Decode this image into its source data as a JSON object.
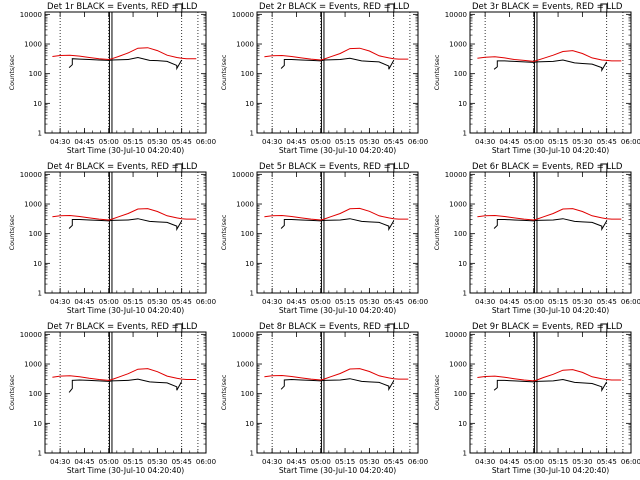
{
  "colors": {
    "events": "#000000",
    "lld": "#e00000"
  },
  "chart_data": [
    {
      "type": "line",
      "title": "Det 1r BLACK = Events, RED = LLD",
      "ylabel": "Counts/sec",
      "xlabel": "Start Time (30-Jul-10 04:20:40)",
      "x_ticks": [
        "04:30",
        "04:45",
        "05:00",
        "05:15",
        "05:30",
        "05:45",
        "06:00"
      ],
      "y_ticks": [
        "1",
        "10",
        "100",
        "1000",
        "10000"
      ],
      "xlim": [
        4.3444,
        6.0
      ],
      "ylim": [
        1,
        12000
      ],
      "dotted_lines_x": [
        4.5,
        5.0,
        5.75,
        5.917
      ],
      "solid_lines_x": [
        5.007,
        5.033
      ],
      "series": [
        {
          "name": "Events",
          "color": "#000000",
          "x": [
            4.592,
            4.625,
            4.625,
            4.7,
            4.8,
            4.9,
            5.0,
            5.033,
            5.2,
            5.3,
            5.42,
            5.5,
            5.6,
            5.7,
            5.7,
            5.75,
            5.75,
            5.8
          ],
          "y": [
            160,
            200,
            320,
            310,
            300,
            290,
            280,
            290,
            300,
            350,
            280,
            275,
            260,
            190,
            150,
            290,
            null,
            null
          ]
        },
        {
          "name": "LLD",
          "color": "#e00000",
          "x": [
            4.42,
            4.5,
            4.6,
            4.7,
            4.8,
            4.9,
            5.0,
            5.033,
            5.1,
            5.2,
            5.3,
            5.4,
            5.5,
            5.6,
            5.7,
            5.75,
            5.8,
            5.9
          ],
          "y": [
            380,
            410,
            420,
            390,
            350,
            320,
            300,
            320,
            380,
            500,
            720,
            750,
            600,
            420,
            350,
            330,
            320,
            320
          ]
        }
      ]
    },
    {
      "type": "line",
      "title": "Det 2r BLACK = Events, RED = LLD",
      "ylabel": "Counts/sec",
      "xlabel": "Start Time (30-Jul-10 04:20:40)",
      "x_ticks": [
        "04:30",
        "04:45",
        "05:00",
        "05:15",
        "05:30",
        "05:45",
        "06:00"
      ],
      "y_ticks": [
        "1",
        "10",
        "100",
        "1000",
        "10000"
      ],
      "xlim": [
        4.3444,
        6.0
      ],
      "ylim": [
        1,
        12000
      ],
      "dotted_lines_x": [
        4.5,
        5.0,
        5.75,
        5.917
      ],
      "solid_lines_x": [
        5.007,
        5.033
      ],
      "series": [
        {
          "name": "Events",
          "color": "#000000",
          "x": [
            4.592,
            4.625,
            4.625,
            4.7,
            4.8,
            4.9,
            5.0,
            5.033,
            5.2,
            5.3,
            5.42,
            5.5,
            5.6,
            5.7,
            5.7,
            5.75
          ],
          "y": [
            150,
            190,
            300,
            300,
            290,
            280,
            270,
            290,
            300,
            330,
            270,
            260,
            250,
            180,
            140,
            280
          ]
        },
        {
          "name": "LLD",
          "color": "#e00000",
          "x": [
            4.42,
            4.5,
            4.6,
            4.7,
            4.8,
            4.9,
            5.0,
            5.033,
            5.1,
            5.2,
            5.3,
            5.4,
            5.5,
            5.6,
            5.7,
            5.75,
            5.8,
            5.9
          ],
          "y": [
            370,
            400,
            410,
            380,
            340,
            310,
            290,
            310,
            370,
            480,
            700,
            720,
            580,
            400,
            340,
            320,
            310,
            310
          ]
        }
      ]
    },
    {
      "type": "line",
      "title": "Det 3r BLACK = Events, RED = LLD",
      "ylabel": "Counts/sec",
      "xlabel": "Start Time (30-Jul-10 04:20:40)",
      "x_ticks": [
        "04:30",
        "04:45",
        "05:00",
        "05:15",
        "05:30",
        "05:45",
        "06:00"
      ],
      "y_ticks": [
        "1",
        "10",
        "100",
        "1000",
        "10000"
      ],
      "xlim": [
        4.3444,
        6.0
      ],
      "ylim": [
        1,
        12000
      ],
      "dotted_lines_x": [
        4.5,
        5.0,
        5.75,
        5.917
      ],
      "solid_lines_x": [
        5.007,
        5.033
      ],
      "series": [
        {
          "name": "Events",
          "color": "#000000",
          "x": [
            4.592,
            4.625,
            4.625,
            4.7,
            4.8,
            4.9,
            5.0,
            5.033,
            5.2,
            5.3,
            5.42,
            5.5,
            5.6,
            5.7,
            5.7,
            5.75
          ],
          "y": [
            140,
            170,
            270,
            270,
            260,
            250,
            240,
            250,
            260,
            290,
            230,
            220,
            210,
            160,
            130,
            250
          ]
        },
        {
          "name": "LLD",
          "color": "#e00000",
          "x": [
            4.42,
            4.5,
            4.6,
            4.7,
            4.8,
            4.9,
            5.0,
            5.033,
            5.1,
            5.2,
            5.3,
            5.4,
            5.5,
            5.6,
            5.7,
            5.75,
            5.8,
            5.9
          ],
          "y": [
            330,
            360,
            370,
            340,
            300,
            280,
            260,
            280,
            330,
            420,
            560,
            600,
            480,
            340,
            290,
            280,
            270,
            270
          ]
        }
      ]
    },
    {
      "type": "line",
      "title": "Det 4r BLACK = Events, RED = LLD",
      "ylabel": "Counts/sec",
      "xlabel": "Start Time (30-Jul-10 04:20:40)",
      "x_ticks": [
        "04:30",
        "04:45",
        "05:00",
        "05:15",
        "05:30",
        "05:45",
        "06:00"
      ],
      "y_ticks": [
        "1",
        "10",
        "100",
        "1000",
        "10000"
      ],
      "xlim": [
        4.3444,
        6.0
      ],
      "ylim": [
        1,
        12000
      ],
      "dotted_lines_x": [
        4.5,
        5.0,
        5.75,
        5.917
      ],
      "solid_lines_x": [
        5.007,
        5.033
      ],
      "series": [
        {
          "name": "Events",
          "color": "#000000",
          "x": [
            4.592,
            4.625,
            4.625,
            4.7,
            4.8,
            4.9,
            5.0,
            5.033,
            5.2,
            5.3,
            5.42,
            5.5,
            5.6,
            5.7,
            5.7,
            5.75
          ],
          "y": [
            150,
            190,
            300,
            300,
            290,
            280,
            270,
            280,
            290,
            320,
            260,
            250,
            240,
            180,
            140,
            270
          ]
        },
        {
          "name": "LLD",
          "color": "#e00000",
          "x": [
            4.42,
            4.5,
            4.6,
            4.7,
            4.8,
            4.9,
            5.0,
            5.033,
            5.1,
            5.2,
            5.3,
            5.4,
            5.5,
            5.6,
            5.7,
            5.75,
            5.8,
            5.9
          ],
          "y": [
            370,
            400,
            410,
            380,
            340,
            310,
            290,
            310,
            370,
            480,
            680,
            700,
            560,
            400,
            340,
            320,
            310,
            310
          ]
        }
      ]
    },
    {
      "type": "line",
      "title": "Det 5r BLACK = Events, RED = LLD",
      "ylabel": "Counts/sec",
      "xlabel": "Start Time (30-Jul-10 04:20:40)",
      "x_ticks": [
        "04:30",
        "04:45",
        "05:00",
        "05:15",
        "05:30",
        "05:45",
        "06:00"
      ],
      "y_ticks": [
        "1",
        "10",
        "100",
        "1000",
        "10000"
      ],
      "xlim": [
        4.3444,
        6.0
      ],
      "ylim": [
        1,
        12000
      ],
      "dotted_lines_x": [
        4.5,
        5.0,
        5.75,
        5.917
      ],
      "solid_lines_x": [
        5.007,
        5.033
      ],
      "series": [
        {
          "name": "Events",
          "color": "#000000",
          "x": [
            4.592,
            4.625,
            4.625,
            4.7,
            4.8,
            4.9,
            5.0,
            5.033,
            5.2,
            5.3,
            5.42,
            5.5,
            5.6,
            5.7,
            5.7,
            5.75
          ],
          "y": [
            150,
            190,
            300,
            300,
            290,
            280,
            270,
            280,
            290,
            320,
            260,
            250,
            240,
            180,
            140,
            270
          ]
        },
        {
          "name": "LLD",
          "color": "#e00000",
          "x": [
            4.42,
            4.5,
            4.6,
            4.7,
            4.8,
            4.9,
            5.0,
            5.033,
            5.1,
            5.2,
            5.3,
            5.4,
            5.5,
            5.6,
            5.7,
            5.75,
            5.8,
            5.9
          ],
          "y": [
            370,
            400,
            410,
            380,
            340,
            310,
            290,
            310,
            370,
            480,
            690,
            710,
            570,
            400,
            340,
            320,
            310,
            310
          ]
        }
      ]
    },
    {
      "type": "line",
      "title": "Det 6r BLACK = Events, RED = LLD",
      "ylabel": "Counts/sec",
      "xlabel": "Start Time (30-Jul-10 04:20:40)",
      "x_ticks": [
        "04:30",
        "04:45",
        "05:00",
        "05:15",
        "05:30",
        "05:45",
        "06:00"
      ],
      "y_ticks": [
        "1",
        "10",
        "100",
        "1000",
        "10000"
      ],
      "xlim": [
        4.3444,
        6.0
      ],
      "ylim": [
        1,
        12000
      ],
      "dotted_lines_x": [
        4.5,
        5.0,
        5.75,
        5.917
      ],
      "solid_lines_x": [
        5.007,
        5.033
      ],
      "series": [
        {
          "name": "Events",
          "color": "#000000",
          "x": [
            4.592,
            4.625,
            4.625,
            4.7,
            4.8,
            4.9,
            5.0,
            5.033,
            5.2,
            5.3,
            5.42,
            5.5,
            5.6,
            5.7,
            5.7,
            5.75
          ],
          "y": [
            150,
            190,
            300,
            300,
            290,
            280,
            270,
            280,
            290,
            320,
            260,
            250,
            240,
            180,
            140,
            270
          ]
        },
        {
          "name": "LLD",
          "color": "#e00000",
          "x": [
            4.42,
            4.5,
            4.6,
            4.7,
            4.8,
            4.9,
            5.0,
            5.033,
            5.1,
            5.2,
            5.3,
            5.4,
            5.5,
            5.6,
            5.7,
            5.75,
            5.8,
            5.9
          ],
          "y": [
            370,
            400,
            410,
            380,
            340,
            310,
            290,
            310,
            370,
            480,
            680,
            700,
            560,
            400,
            340,
            320,
            310,
            310
          ]
        }
      ]
    },
    {
      "type": "line",
      "title": "Det 7r BLACK = Events, RED = LLD",
      "ylabel": "Counts/sec",
      "xlabel": "Start Time (30-Jul-10 04:20:40)",
      "x_ticks": [
        "04:30",
        "04:45",
        "05:00",
        "05:15",
        "05:30",
        "05:45",
        "06:00"
      ],
      "y_ticks": [
        "1",
        "10",
        "100",
        "1000",
        "10000"
      ],
      "xlim": [
        4.3444,
        6.0
      ],
      "ylim": [
        1,
        12000
      ],
      "dotted_lines_x": [
        4.5,
        5.0,
        5.75,
        5.917
      ],
      "solid_lines_x": [
        5.007,
        5.033
      ],
      "series": [
        {
          "name": "Events",
          "color": "#000000",
          "x": [
            4.592,
            4.625,
            4.625,
            4.7,
            4.8,
            4.9,
            5.0,
            5.033,
            5.2,
            5.3,
            5.42,
            5.5,
            5.6,
            5.7,
            5.7,
            5.75
          ],
          "y": [
            110,
            150,
            280,
            290,
            280,
            270,
            260,
            270,
            280,
            310,
            250,
            240,
            230,
            170,
            130,
            260
          ]
        },
        {
          "name": "LLD",
          "color": "#e00000",
          "x": [
            4.42,
            4.5,
            4.6,
            4.7,
            4.8,
            4.9,
            5.0,
            5.033,
            5.1,
            5.2,
            5.3,
            5.4,
            5.5,
            5.6,
            5.7,
            5.75,
            5.8,
            5.9
          ],
          "y": [
            360,
            390,
            400,
            370,
            330,
            300,
            280,
            300,
            360,
            470,
            670,
            700,
            550,
            390,
            330,
            310,
            300,
            300
          ]
        }
      ]
    },
    {
      "type": "line",
      "title": "Det 8r BLACK = Events, RED = LLD",
      "ylabel": "Counts/sec",
      "xlabel": "Start Time (30-Jul-10 04:20:40)",
      "x_ticks": [
        "04:30",
        "04:45",
        "05:00",
        "05:15",
        "05:30",
        "05:45",
        "06:00"
      ],
      "y_ticks": [
        "1",
        "10",
        "100",
        "1000",
        "10000"
      ],
      "xlim": [
        4.3444,
        6.0
      ],
      "ylim": [
        1,
        12000
      ],
      "dotted_lines_x": [
        4.5,
        5.0,
        5.75,
        5.917
      ],
      "solid_lines_x": [
        5.007,
        5.033
      ],
      "series": [
        {
          "name": "Events",
          "color": "#000000",
          "x": [
            4.592,
            4.625,
            4.625,
            4.7,
            4.8,
            4.9,
            5.0,
            5.033,
            5.2,
            5.3,
            5.42,
            5.5,
            5.6,
            5.7,
            5.7,
            5.75
          ],
          "y": [
            140,
            180,
            290,
            300,
            290,
            280,
            270,
            280,
            290,
            320,
            260,
            250,
            240,
            180,
            140,
            270
          ]
        },
        {
          "name": "LLD",
          "color": "#e00000",
          "x": [
            4.42,
            4.5,
            4.6,
            4.7,
            4.8,
            4.9,
            5.0,
            5.033,
            5.1,
            5.2,
            5.3,
            5.4,
            5.5,
            5.6,
            5.7,
            5.75,
            5.8,
            5.9
          ],
          "y": [
            370,
            400,
            410,
            380,
            340,
            310,
            290,
            310,
            370,
            480,
            680,
            700,
            560,
            400,
            340,
            320,
            310,
            310
          ]
        }
      ]
    },
    {
      "type": "line",
      "title": "Det 9r BLACK = Events, RED = LLD",
      "ylabel": "Counts/sec",
      "xlabel": "Start Time (30-Jul-10 04:20:40)",
      "x_ticks": [
        "04:30",
        "04:45",
        "05:00",
        "05:15",
        "05:30",
        "05:45",
        "06:00"
      ],
      "y_ticks": [
        "1",
        "10",
        "100",
        "1000",
        "10000"
      ],
      "xlim": [
        4.3444,
        6.0
      ],
      "ylim": [
        1,
        12000
      ],
      "dotted_lines_x": [
        4.5,
        5.0,
        5.75,
        5.917
      ],
      "solid_lines_x": [
        5.007,
        5.033
      ],
      "series": [
        {
          "name": "Events",
          "color": "#000000",
          "x": [
            4.592,
            4.625,
            4.625,
            4.7,
            4.8,
            4.9,
            5.0,
            5.033,
            5.2,
            5.3,
            5.42,
            5.5,
            5.6,
            5.7,
            5.7,
            5.75
          ],
          "y": [
            130,
            160,
            280,
            280,
            270,
            260,
            250,
            260,
            270,
            300,
            240,
            230,
            220,
            170,
            130,
            250
          ]
        },
        {
          "name": "LLD",
          "color": "#e00000",
          "x": [
            4.42,
            4.5,
            4.6,
            4.7,
            4.8,
            4.9,
            5.0,
            5.033,
            5.1,
            5.2,
            5.3,
            5.4,
            5.5,
            5.6,
            5.7,
            5.75,
            5.8,
            5.9
          ],
          "y": [
            350,
            380,
            390,
            360,
            320,
            290,
            270,
            290,
            350,
            450,
            620,
            650,
            520,
            370,
            320,
            300,
            290,
            290
          ]
        }
      ]
    }
  ]
}
